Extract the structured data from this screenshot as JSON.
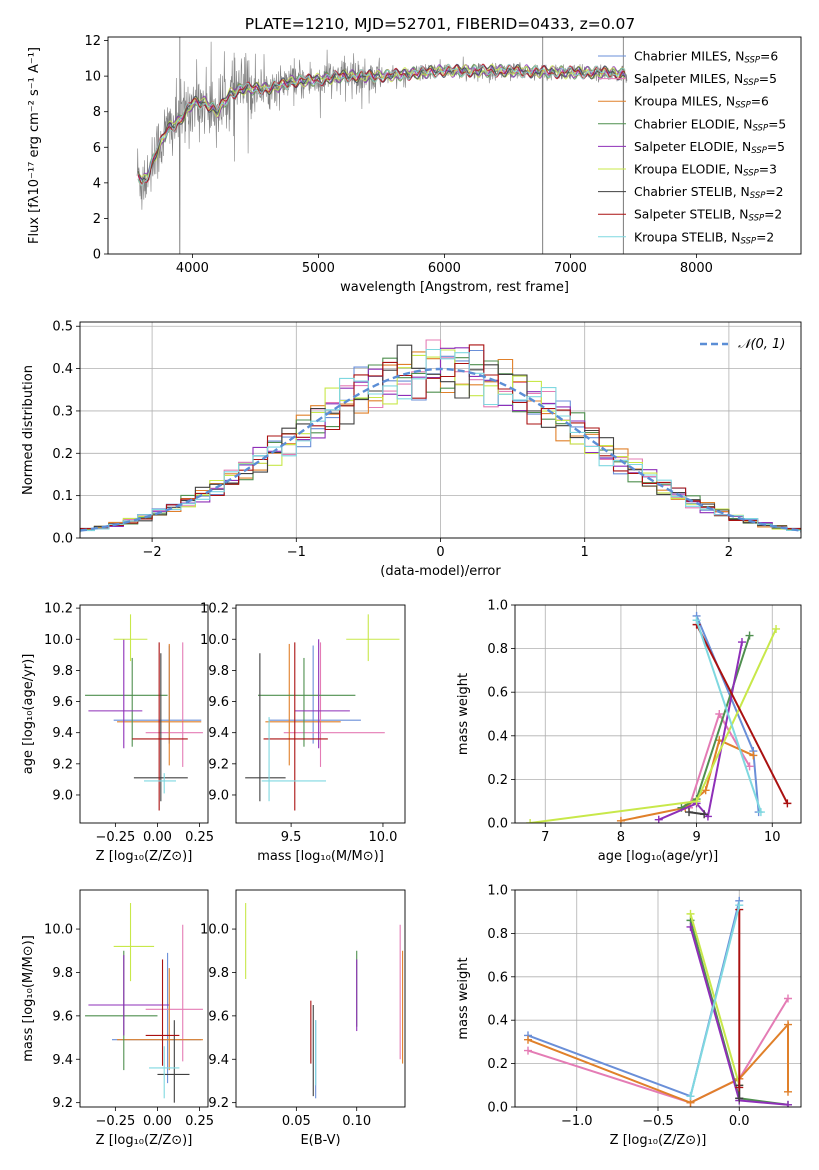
{
  "figure": {
    "title": "PLATE=1210, MJD=52701, FIBERID=0433, z=0.07"
  },
  "legend_entries": [
    {
      "name": "Chabrier MILES, N",
      "sub": "SSP",
      "tail": "=6",
      "color": "#6a8fd8"
    },
    {
      "name": "Salpeter MILES, N",
      "sub": "SSP",
      "tail": "=5",
      "color": "#e47cb5"
    },
    {
      "name": "Kroupa MILES, N",
      "sub": "SSP",
      "tail": "=6",
      "color": "#e0802a"
    },
    {
      "name": "Chabrier ELODIE, N",
      "sub": "SSP",
      "tail": "=5",
      "color": "#4f8f4f"
    },
    {
      "name": "Salpeter ELODIE, N",
      "sub": "SSP",
      "tail": "=5",
      "color": "#8e2fb8"
    },
    {
      "name": "Kroupa ELODIE, N",
      "sub": "SSP",
      "tail": "=3",
      "color": "#c8e84a"
    },
    {
      "name": "Chabrier STELIB, N",
      "sub": "SSP",
      "tail": "=2",
      "color": "#404040"
    },
    {
      "name": "Salpeter STELIB, N",
      "sub": "SSP",
      "tail": "=2",
      "color": "#aa1111"
    },
    {
      "name": "Kroupa STELIB, N",
      "sub": "SSP",
      "tail": "=2",
      "color": "#7fd8e0"
    }
  ],
  "chart_data": [
    {
      "id": "spectrum",
      "type": "line",
      "xlabel": "wavelength [Angstrom, rest frame]",
      "ylabel": "Flux [fλ10⁻¹⁷ erg cm⁻² s⁻¹ A⁻¹]",
      "xlim": [
        3330,
        8830
      ],
      "ylim": [
        0,
        12.2
      ],
      "xticks": [
        4000,
        5000,
        6000,
        7000,
        8000
      ],
      "yticks": [
        0,
        2,
        4,
        6,
        8,
        10,
        12
      ],
      "data_color": "#808080",
      "envelope": {
        "wavelength": [
          3560,
          3600,
          3650,
          3700,
          3800,
          3900,
          4000,
          4100,
          4200,
          4300,
          4400,
          4600,
          4800,
          5000,
          5200,
          5500,
          6000,
          6500,
          7000,
          7300,
          7450
        ],
        "flux": [
          4.7,
          4.0,
          4.5,
          5.5,
          7.0,
          7.5,
          8.5,
          8.5,
          8.0,
          9.0,
          9.3,
          9.3,
          9.7,
          9.8,
          10.0,
          10.0,
          10.3,
          10.3,
          10.2,
          10.2,
          10.1
        ]
      },
      "spikes": [
        3900,
        6780,
        7420
      ],
      "legend": "upper right"
    },
    {
      "id": "residuals",
      "type": "histogram",
      "xlabel": "(data-model)/error",
      "ylabel": "Normed distribution",
      "xlim": [
        -2.5,
        2.5
      ],
      "ylim": [
        0,
        0.51
      ],
      "xticks": [
        -2,
        -1,
        0,
        1,
        2
      ],
      "yticks": [
        0,
        0.1,
        0.2,
        0.3,
        0.4,
        0.5
      ],
      "reference": {
        "name": "𝒩(0, 1)",
        "style": "dashed",
        "color": "#5b8ed6"
      },
      "bin_width": 0.1,
      "series": [
        {
          "name": "Chabrier MILES",
          "color": "#6a8fd8"
        },
        {
          "name": "Salpeter MILES",
          "color": "#e47cb5"
        },
        {
          "name": "Kroupa MILES",
          "color": "#e0802a"
        },
        {
          "name": "Chabrier ELODIE",
          "color": "#4f8f4f"
        },
        {
          "name": "Salpeter ELODIE",
          "color": "#8e2fb8"
        },
        {
          "name": "Kroupa ELODIE",
          "color": "#c8e84a"
        },
        {
          "name": "Chabrier STELIB",
          "color": "#404040"
        },
        {
          "name": "Salpeter STELIB",
          "color": "#aa1111"
        },
        {
          "name": "Kroupa STELIB",
          "color": "#7fd8e0"
        }
      ],
      "grid": true,
      "legend": "upper right"
    },
    {
      "id": "age_vs_Z",
      "type": "errorbar",
      "xlabel": "Z [log₁₀(Z/Z⊙)]",
      "ylabel": "age  [log₁₀(age/yr)]",
      "xlim": [
        -0.46,
        0.3
      ],
      "ylim": [
        8.82,
        10.22
      ],
      "xticks": [
        -0.25,
        0.0,
        0.25
      ],
      "xticklabels": [
        "−0.25",
        "0.00",
        "0.25"
      ],
      "yticks": [
        9.0,
        9.2,
        9.4,
        9.6,
        9.8,
        10.0,
        10.2
      ],
      "points": [
        {
          "color": "#6a8fd8",
          "x": 0.07,
          "y": 9.48,
          "xerr": [
            0.33,
            0.19
          ],
          "yerr": [
            0.15,
            0.48
          ]
        },
        {
          "color": "#e47cb5",
          "x": 0.15,
          "y": 9.4,
          "xerr": [
            0.22,
            0.12
          ],
          "yerr": [
            0.22,
            0.58
          ]
        },
        {
          "color": "#e0802a",
          "x": 0.07,
          "y": 9.47,
          "xerr": [
            0.31,
            0.19
          ],
          "yerr": [
            0.28,
            0.5
          ]
        },
        {
          "color": "#4f8f4f",
          "x": -0.15,
          "y": 9.64,
          "xerr": [
            0.28,
            0.21
          ],
          "yerr": [
            0.33,
            0.24
          ]
        },
        {
          "color": "#8e2fb8",
          "x": -0.2,
          "y": 9.54,
          "xerr": [
            0.21,
            0.11
          ],
          "yerr": [
            0.24,
            0.46
          ]
        },
        {
          "color": "#c8e84a",
          "x": -0.16,
          "y": 10.0,
          "xerr": [
            0.1,
            0.1
          ],
          "yerr": [
            0.14,
            0.16
          ]
        },
        {
          "color": "#404040",
          "x": 0.02,
          "y": 9.11,
          "xerr": [
            0.16,
            0.16
          ],
          "yerr": [
            0.15,
            0.8
          ]
        },
        {
          "color": "#aa1111",
          "x": 0.01,
          "y": 9.36,
          "xerr": [
            0.16,
            0.17
          ],
          "yerr": [
            0.46,
            0.62
          ]
        },
        {
          "color": "#7fd8e0",
          "x": 0.04,
          "y": 9.09,
          "xerr": [
            0.12,
            0.07
          ],
          "yerr": [
            0.08,
            0.05
          ]
        }
      ]
    },
    {
      "id": "age_vs_mass",
      "type": "errorbar",
      "xlabel": "mass [log₁₀(M/M⊙)]",
      "ylabel": "",
      "xlim": [
        9.2,
        10.12
      ],
      "ylim": [
        8.82,
        10.22
      ],
      "xticks": [
        9.5,
        10.0
      ],
      "xticklabels": [
        "9.5",
        "10.0"
      ],
      "yticks": [
        9.0,
        9.2,
        9.4,
        9.6,
        9.8,
        10.0,
        10.2
      ],
      "points": [
        {
          "color": "#6a8fd8",
          "x": 9.62,
          "y": 9.48,
          "xerr": [
            0.24,
            0.26
          ],
          "yerr": [
            0.15,
            0.48
          ]
        },
        {
          "color": "#e47cb5",
          "x": 9.66,
          "y": 9.4,
          "xerr": [
            0.2,
            0.35
          ],
          "yerr": [
            0.22,
            0.58
          ]
        },
        {
          "color": "#e0802a",
          "x": 9.49,
          "y": 9.47,
          "xerr": [
            0.13,
            0.28
          ],
          "yerr": [
            0.28,
            0.5
          ]
        },
        {
          "color": "#4f8f4f",
          "x": 9.57,
          "y": 9.64,
          "xerr": [
            0.25,
            0.28
          ],
          "yerr": [
            0.33,
            0.24
          ]
        },
        {
          "color": "#8e2fb8",
          "x": 9.65,
          "y": 9.54,
          "xerr": [
            0.13,
            0.17
          ],
          "yerr": [
            0.24,
            0.46
          ]
        },
        {
          "color": "#c8e84a",
          "x": 9.92,
          "y": 10.0,
          "xerr": [
            0.12,
            0.17
          ],
          "yerr": [
            0.14,
            0.16
          ]
        },
        {
          "color": "#404040",
          "x": 9.33,
          "y": 9.11,
          "xerr": [
            0.08,
            0.14
          ],
          "yerr": [
            0.15,
            0.8
          ]
        },
        {
          "color": "#aa1111",
          "x": 9.52,
          "y": 9.36,
          "xerr": [
            0.17,
            0.18
          ],
          "yerr": [
            0.46,
            0.62
          ]
        },
        {
          "color": "#7fd8e0",
          "x": 9.38,
          "y": 9.09,
          "xerr": [
            0.04,
            0.31
          ],
          "yerr": [
            0.13,
            0.41
          ]
        }
      ]
    },
    {
      "id": "mass_weight_vs_age",
      "type": "line",
      "xlabel": "age  [log₁₀(age/yr)]",
      "ylabel": "mass weight",
      "xlim": [
        6.6,
        10.38
      ],
      "ylim": [
        0,
        1.0
      ],
      "xticks": [
        7,
        8,
        9,
        10
      ],
      "yticks": [
        0,
        0.2,
        0.4,
        0.6,
        0.8,
        1.0
      ],
      "grid": true,
      "series": [
        {
          "name": "Chabrier MILES",
          "color": "#6a8fd8",
          "x": [
            9.0,
            9.75,
            9.82
          ],
          "y": [
            0.95,
            0.33,
            0.05
          ]
        },
        {
          "name": "Salpeter MILES",
          "color": "#e47cb5",
          "x": [
            8.9,
            9.3,
            9.7
          ],
          "y": [
            0.07,
            0.5,
            0.26
          ]
        },
        {
          "name": "Kroupa MILES",
          "color": "#e0802a",
          "x": [
            8.0,
            8.85,
            9.12,
            9.3,
            9.75
          ],
          "y": [
            0.01,
            0.07,
            0.15,
            0.38,
            0.31
          ]
        },
        {
          "name": "Chabrier ELODIE",
          "color": "#4f8f4f",
          "x": [
            8.8,
            9.0,
            9.7
          ],
          "y": [
            0.07,
            0.11,
            0.86
          ]
        },
        {
          "name": "Salpeter ELODIE",
          "color": "#8e2fb8",
          "x": [
            8.5,
            9.0,
            9.15,
            9.6
          ],
          "y": [
            0.015,
            0.09,
            0.03,
            0.83
          ]
        },
        {
          "name": "Kroupa ELODIE",
          "color": "#c8e84a",
          "x": [
            6.8,
            9.0,
            10.05
          ],
          "y": [
            0.0,
            0.1,
            0.89
          ]
        },
        {
          "name": "Chabrier STELIB",
          "color": "#404040",
          "x": [
            8.9,
            9.1
          ],
          "y": [
            0.05,
            0.04
          ]
        },
        {
          "name": "Salpeter STELIB",
          "color": "#aa1111",
          "x": [
            9.0,
            10.2
          ],
          "y": [
            0.91,
            0.09
          ]
        },
        {
          "name": "Kroupa STELIB",
          "color": "#7fd8e0",
          "x": [
            9.0,
            9.85
          ],
          "y": [
            0.93,
            0.05
          ]
        }
      ]
    },
    {
      "id": "mass_vs_Z",
      "type": "errorbar",
      "xlabel": "Z [log₁₀(Z/Z⊙)]",
      "ylabel": "mass [log₁₀(M/M⊙)]",
      "xlim": [
        -0.46,
        0.3
      ],
      "ylim": [
        9.18,
        10.18
      ],
      "xticks": [
        -0.25,
        0.0,
        0.25
      ],
      "xticklabels": [
        "−0.25",
        "0.00",
        "0.25"
      ],
      "yticks": [
        9.2,
        9.4,
        9.6,
        9.8,
        10.0
      ],
      "points": [
        {
          "color": "#6a8fd8",
          "x": 0.06,
          "y": 9.49,
          "xerr": [
            0.33,
            0.2
          ],
          "yerr": [
            0.2,
            0.4
          ]
        },
        {
          "color": "#e47cb5",
          "x": 0.15,
          "y": 9.63,
          "xerr": [
            0.22,
            0.12
          ],
          "yerr": [
            0.24,
            0.39
          ]
        },
        {
          "color": "#e0802a",
          "x": 0.07,
          "y": 9.49,
          "xerr": [
            0.31,
            0.2
          ],
          "yerr": [
            0.14,
            0.33
          ]
        },
        {
          "color": "#4f8f4f",
          "x": -0.2,
          "y": 9.6,
          "xerr": [
            0.23,
            0.2
          ],
          "yerr": [
            0.25,
            0.3
          ]
        },
        {
          "color": "#8e2fb8",
          "x": -0.2,
          "y": 9.65,
          "xerr": [
            0.21,
            0.27
          ],
          "yerr": [
            0.14,
            0.23
          ]
        },
        {
          "color": "#c8e84a",
          "x": -0.16,
          "y": 9.92,
          "xerr": [
            0.1,
            0.14
          ],
          "yerr": [
            0.16,
            0.2
          ]
        },
        {
          "color": "#404040",
          "x": 0.1,
          "y": 9.33,
          "xerr": [
            0.1,
            0.09
          ],
          "yerr": [
            0.13,
            0.25
          ]
        },
        {
          "color": "#aa1111",
          "x": 0.03,
          "y": 9.51,
          "xerr": [
            0.1,
            0.1
          ],
          "yerr": [
            0.14,
            0.35
          ]
        },
        {
          "color": "#7fd8e0",
          "x": 0.04,
          "y": 9.36,
          "xerr": [
            0.09,
            0.09
          ],
          "yerr": [
            0.14,
            0.1
          ]
        }
      ]
    },
    {
      "id": "mass_vs_ebv",
      "type": "errorbar",
      "xlabel": "E(B-V)",
      "ylabel": "",
      "xlim": [
        0.0,
        0.14
      ],
      "ylim": [
        9.18,
        10.18
      ],
      "xticks": [
        0.05,
        0.1
      ],
      "xticklabels": [
        "0.05",
        "0.10"
      ],
      "yticks": [
        9.2,
        9.4,
        9.6,
        9.8,
        10.0
      ],
      "points": [
        {
          "color": "#6a8fd8",
          "x": 0.066,
          "y": 9.42,
          "xerr": [
            0,
            0
          ],
          "yerr": [
            0.2,
            0.16
          ]
        },
        {
          "color": "#e47cb5",
          "x": 0.136,
          "y": 9.6,
          "xerr": [
            0,
            0
          ],
          "yerr": [
            0.2,
            0.42
          ]
        },
        {
          "color": "#e0802a",
          "x": 0.138,
          "y": 9.6,
          "xerr": [
            0,
            0
          ],
          "yerr": [
            0.22,
            0.3
          ]
        },
        {
          "color": "#4f8f4f",
          "x": 0.1,
          "y": 9.7,
          "xerr": [
            0,
            0
          ],
          "yerr": [
            0.15,
            0.2
          ]
        },
        {
          "color": "#8e2fb8",
          "x": 0.1,
          "y": 9.68,
          "xerr": [
            0,
            0
          ],
          "yerr": [
            0.15,
            0.18
          ]
        },
        {
          "color": "#c8e84a",
          "x": 0.008,
          "y": 9.94,
          "xerr": [
            0,
            0
          ],
          "yerr": [
            0.17,
            0.18
          ]
        },
        {
          "color": "#404040",
          "x": 0.064,
          "y": 9.45,
          "xerr": [
            0,
            0
          ],
          "yerr": [
            0.22,
            0.2
          ]
        },
        {
          "color": "#aa1111",
          "x": 0.062,
          "y": 9.52,
          "xerr": [
            0,
            0
          ],
          "yerr": [
            0.14,
            0.15
          ]
        },
        {
          "color": "#7fd8e0",
          "x": 0.066,
          "y": 9.4,
          "xerr": [
            0,
            0
          ],
          "yerr": [
            0.12,
            0.18
          ]
        }
      ]
    },
    {
      "id": "mass_weight_vs_Z",
      "type": "line",
      "xlabel": "Z [log₁₀(Z/Z⊙)]",
      "ylabel": "mass weight",
      "xlim": [
        -1.38,
        0.38
      ],
      "ylim": [
        0,
        1.0
      ],
      "xticks": [
        -1.0,
        -0.5,
        0.0
      ],
      "xticklabels": [
        "−1.0",
        "−0.5",
        "0.0"
      ],
      "yticks": [
        0,
        0.2,
        0.4,
        0.6,
        0.8,
        1.0
      ],
      "grid": true,
      "series": [
        {
          "name": "Chabrier MILES",
          "color": "#6a8fd8",
          "x": [
            -1.3,
            -0.3,
            0.0
          ],
          "y": [
            0.33,
            0.05,
            0.95
          ]
        },
        {
          "name": "Salpeter MILES",
          "color": "#e47cb5",
          "x": [
            -1.3,
            -0.3,
            0.0,
            0.3
          ],
          "y": [
            0.26,
            0.02,
            0.13,
            0.5
          ]
        },
        {
          "name": "Kroupa MILES",
          "color": "#e0802a",
          "x": [
            -1.3,
            -0.3,
            0.0,
            0.3,
            0.3
          ],
          "y": [
            0.31,
            0.02,
            0.13,
            0.38,
            0.07
          ]
        },
        {
          "name": "Chabrier ELODIE",
          "color": "#4f8f4f",
          "x": [
            -0.3,
            0.0,
            0.3
          ],
          "y": [
            0.86,
            0.04,
            0.01
          ]
        },
        {
          "name": "Salpeter ELODIE",
          "color": "#8e2fb8",
          "x": [
            -0.3,
            0.0,
            0.3
          ],
          "y": [
            0.83,
            0.03,
            0.01
          ]
        },
        {
          "name": "Kroupa ELODIE",
          "color": "#c8e84a",
          "x": [
            -0.3,
            0.0
          ],
          "y": [
            0.89,
            0.1
          ]
        },
        {
          "name": "Chabrier STELIB",
          "color": "#404040",
          "x": [
            0.0,
            0.0
          ],
          "y": [
            0.1,
            0.04
          ]
        },
        {
          "name": "Salpeter STELIB",
          "color": "#aa1111",
          "x": [
            0.0,
            0.0
          ],
          "y": [
            0.91,
            0.09
          ]
        },
        {
          "name": "Kroupa STELIB",
          "color": "#7fd8e0",
          "x": [
            -0.3,
            0.0
          ],
          "y": [
            0.05,
            0.93
          ]
        }
      ]
    }
  ]
}
